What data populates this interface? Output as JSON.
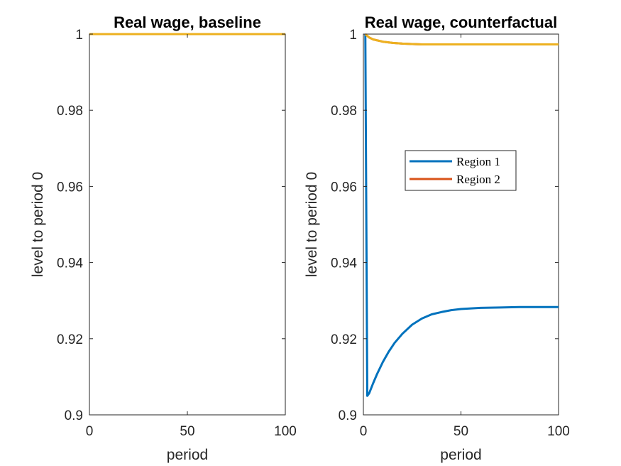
{
  "chart_data": [
    {
      "type": "line",
      "title": "Real wage, baseline",
      "xlabel": "period",
      "ylabel": "level to period 0",
      "xlim": [
        0,
        100
      ],
      "ylim": [
        0.9,
        1.0
      ],
      "xticks": [
        0,
        50,
        100
      ],
      "xtick_labels": [
        "0",
        "50",
        "100"
      ],
      "yticks": [
        0.9,
        0.92,
        0.94,
        0.96,
        0.98,
        1.0
      ],
      "ytick_labels": [
        "0.9",
        "0.92",
        "0.94",
        "0.96",
        "0.98",
        "1"
      ],
      "grid": false,
      "legend": null,
      "series": [
        {
          "color": "#0072BD",
          "x": [
            0,
            25,
            50,
            75,
            100
          ],
          "y": [
            1.0,
            1.0,
            1.0,
            1.0,
            1.0
          ]
        },
        {
          "color": "#D95319",
          "x": [
            0,
            25,
            50,
            75,
            100
          ],
          "y": [
            1.0,
            1.0,
            1.0,
            1.0,
            1.0
          ]
        },
        {
          "color": "#EDB120",
          "x": [
            0,
            25,
            50,
            75,
            100
          ],
          "y": [
            1.0,
            1.0,
            1.0,
            1.0,
            1.0
          ]
        }
      ]
    },
    {
      "type": "line",
      "title": "Real wage, counterfactual",
      "xlabel": "period",
      "ylabel": "level to period 0",
      "xlim": [
        0,
        100
      ],
      "ylim": [
        0.9,
        1.0
      ],
      "xticks": [
        0,
        50,
        100
      ],
      "xtick_labels": [
        "0",
        "50",
        "100"
      ],
      "yticks": [
        0.9,
        0.92,
        0.94,
        0.96,
        0.98,
        1.0
      ],
      "ytick_labels": [
        "0.9",
        "0.92",
        "0.94",
        "0.96",
        "0.98",
        "1"
      ],
      "grid": false,
      "legend": {
        "placement": "center-right",
        "entries": [
          "Region 1",
          "Region 2"
        ]
      },
      "series": [
        {
          "name": "Region 1",
          "color": "#0072BD",
          "x": [
            1,
            2,
            3,
            5,
            7,
            10,
            13,
            16,
            20,
            25,
            30,
            35,
            40,
            45,
            50,
            60,
            70,
            80,
            90,
            100
          ],
          "y": [
            1.0,
            0.905,
            0.9057,
            0.9083,
            0.9107,
            0.9139,
            0.9166,
            0.9189,
            0.9213,
            0.9237,
            0.9253,
            0.9264,
            0.927,
            0.9275,
            0.9278,
            0.9281,
            0.9282,
            0.9283,
            0.9283,
            0.9283
          ]
        },
        {
          "name": "Region 2",
          "color": "#D95319",
          "x": [
            1,
            3,
            5,
            10,
            15,
            20,
            25,
            30,
            40,
            50,
            60,
            70,
            80,
            90,
            100
          ],
          "y": [
            1.0,
            0.9991,
            0.9986,
            0.998,
            0.9977,
            0.9975,
            0.9974,
            0.9973,
            0.9973,
            0.9973,
            0.9973,
            0.9973,
            0.9973,
            0.9973,
            0.9973
          ]
        },
        {
          "color": "#EDB120",
          "x": [
            1,
            3,
            5,
            10,
            15,
            20,
            25,
            30,
            40,
            50,
            60,
            70,
            80,
            90,
            100
          ],
          "y": [
            1.0,
            0.9991,
            0.9986,
            0.998,
            0.9977,
            0.9975,
            0.9974,
            0.9973,
            0.9973,
            0.9973,
            0.9973,
            0.9973,
            0.9973,
            0.9973,
            0.9973
          ]
        }
      ]
    }
  ]
}
